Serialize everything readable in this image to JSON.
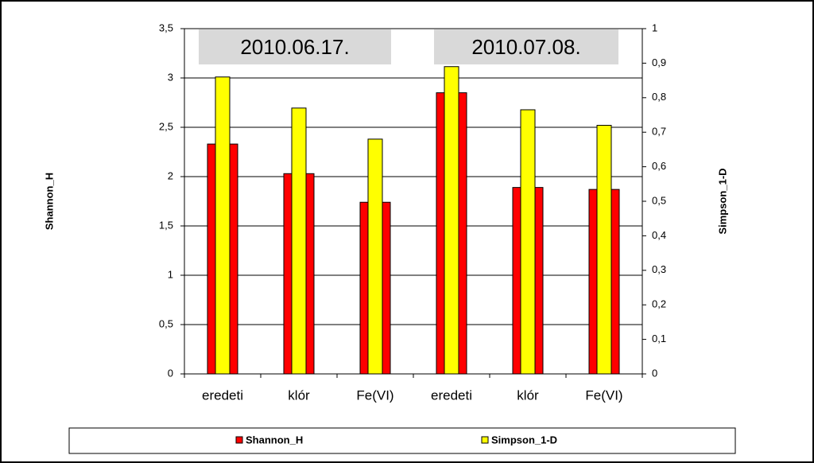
{
  "chart_data": {
    "type": "bar",
    "categories": [
      "eredeti",
      "klór",
      "Fe(VI)",
      "eredeti",
      "klór",
      "Fe(VI)"
    ],
    "series": [
      {
        "name": "Shannon_H",
        "color": "#ff0000",
        "values": [
          2.33,
          2.03,
          1.74,
          2.85,
          1.89,
          1.87
        ]
      },
      {
        "name": "Simpson_1-D",
        "color": "#ffff00",
        "axis": "y2",
        "values": [
          0.86,
          0.77,
          0.68,
          0.89,
          0.765,
          0.72
        ]
      }
    ],
    "ylabel": "Shannon_H",
    "y2label": "Simpson_1-D",
    "ylim": [
      0,
      3.5
    ],
    "yticks": [
      0,
      {
        "value": 0.5,
        "label": "0,5"
      },
      1,
      {
        "value": 1.5,
        "label": "1,5"
      },
      2,
      {
        "value": 2.5,
        "label": "2,5"
      },
      3,
      {
        "value": 3.5,
        "label": "3,5"
      }
    ],
    "y2lim": [
      0,
      1
    ],
    "y2ticks": [
      0,
      {
        "value": 0.1,
        "label": "0,1"
      },
      {
        "value": 0.2,
        "label": "0,2"
      },
      {
        "value": 0.3,
        "label": "0,3"
      },
      {
        "value": 0.4,
        "label": "0,4"
      },
      {
        "value": 0.5,
        "label": "0,5"
      },
      {
        "value": 0.6,
        "label": "0,6"
      },
      {
        "value": 0.7,
        "label": "0,7"
      },
      {
        "value": 0.8,
        "label": "0,8"
      },
      {
        "value": 0.9,
        "label": "0,9"
      },
      1
    ],
    "annotations": [
      "2010.06.17.",
      "2010.07.08."
    ],
    "grid": true,
    "legend": "bottom"
  }
}
